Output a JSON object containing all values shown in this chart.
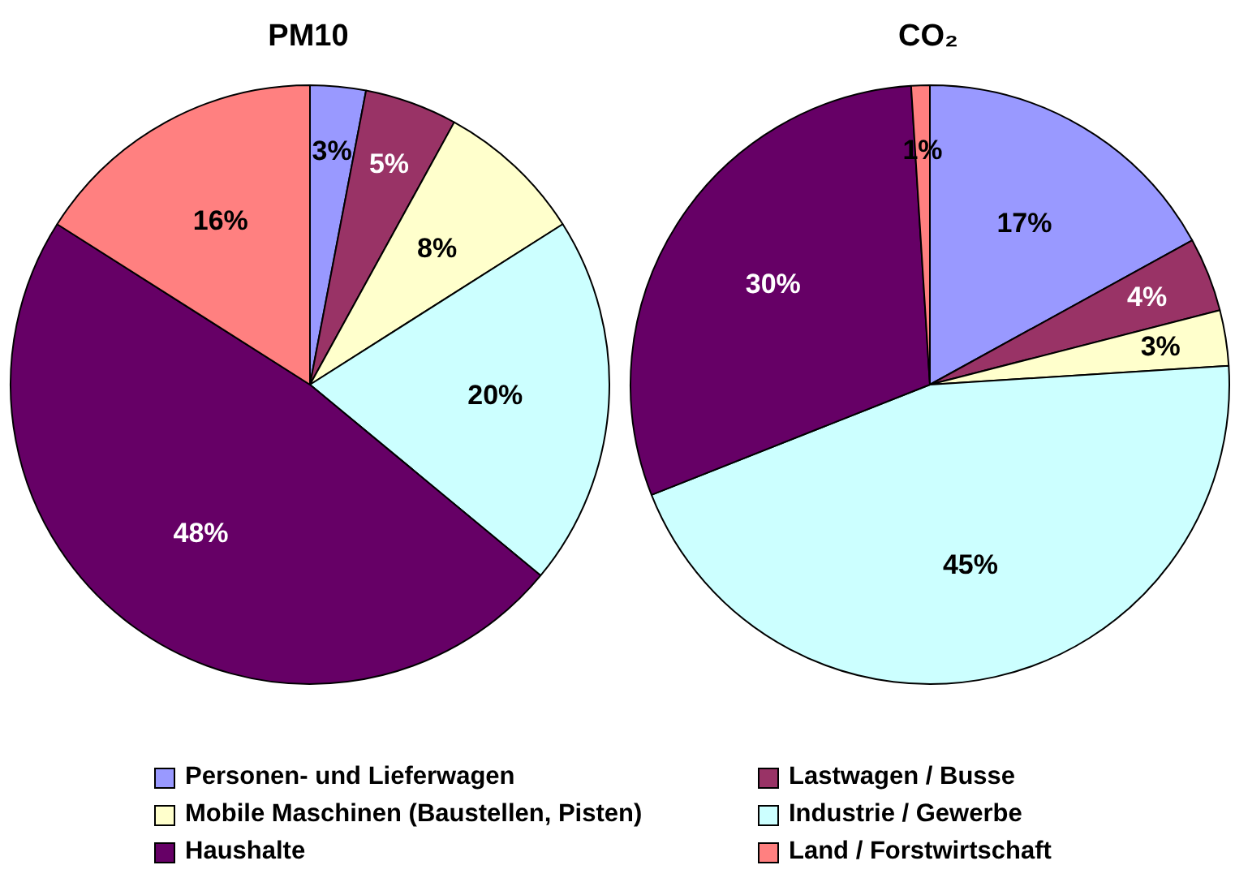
{
  "chart_data": [
    {
      "type": "pie",
      "title": "PM10",
      "categories": [
        "Personen- und Lieferwagen",
        "Lastwagen / Busse",
        "Mobile Maschinen (Baustellen, Pisten)",
        "Industrie / Gewerbe",
        "Haushalte",
        "Land / Forstwirtschaft"
      ],
      "values": [
        3,
        5,
        8,
        20,
        48,
        16
      ],
      "value_labels": [
        "3%",
        "5%",
        "8%",
        "20%",
        "48%",
        "16%"
      ],
      "colors": [
        "#9999ff",
        "#993366",
        "#ffffcc",
        "#ccffff",
        "#660066",
        "#ff8080"
      ],
      "legend": "bottom"
    },
    {
      "type": "pie",
      "title": "CO₂",
      "categories": [
        null,
        null,
        null,
        null,
        null,
        null
      ],
      "values": [
        17,
        4,
        3,
        45,
        30,
        1
      ],
      "value_labels": [
        "17%",
        "4%",
        "3%",
        "45%",
        "30%",
        "1%"
      ],
      "colors": [
        "#9999ff",
        "#993366",
        "#ffffcc",
        "#ccffff",
        "#660066",
        "#ff8080"
      ]
    }
  ]
}
